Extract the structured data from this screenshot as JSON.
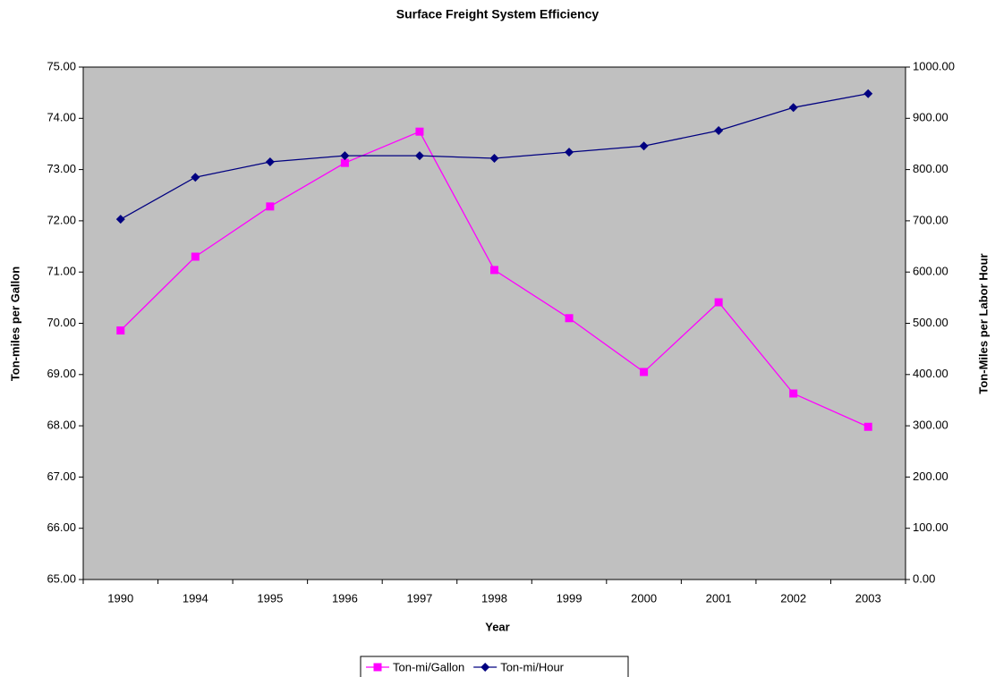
{
  "chart_data": {
    "type": "line",
    "title": "Surface Freight System Efficiency",
    "x_label": "Year",
    "y_label": "Ton-miles per Gallon",
    "y2_label": "Ton-Miles per Labor Hour",
    "categories": [
      "1990",
      "1994",
      "1995",
      "1996",
      "1997",
      "1998",
      "1999",
      "2000",
      "2001",
      "2002",
      "2003"
    ],
    "series": [
      {
        "name": "Ton-mi/Gallon",
        "color": "#ff00ff",
        "marker": "square",
        "axis": "y",
        "values": [
          69.86,
          71.3,
          72.28,
          73.13,
          73.74,
          71.04,
          70.1,
          69.05,
          70.41,
          68.63,
          67.98
        ]
      },
      {
        "name": "Ton-mi/Hour",
        "color": "#000080",
        "marker": "diamond",
        "axis": "y2",
        "values": [
          703,
          785,
          815,
          827,
          827,
          822,
          834,
          846,
          876,
          921,
          948
        ]
      }
    ],
    "ylim": [
      65,
      75
    ],
    "yticks": [
      {
        "value": 65,
        "label": "65.00"
      },
      {
        "value": 66,
        "label": "66.00"
      },
      {
        "value": 67,
        "label": "67.00"
      },
      {
        "value": 68,
        "label": "68.00"
      },
      {
        "value": 69,
        "label": "69.00"
      },
      {
        "value": 70,
        "label": "70.00"
      },
      {
        "value": 71,
        "label": "71.00"
      },
      {
        "value": 72,
        "label": "72.00"
      },
      {
        "value": 73,
        "label": "73.00"
      },
      {
        "value": 74,
        "label": "74.00"
      },
      {
        "value": 75,
        "label": "75.00"
      }
    ],
    "y2lim": [
      0,
      1000
    ],
    "y2ticks": [
      {
        "value": 0,
        "label": "0.00"
      },
      {
        "value": 100,
        "label": "100.00"
      },
      {
        "value": 200,
        "label": "200.00"
      },
      {
        "value": 300,
        "label": "300.00"
      },
      {
        "value": 400,
        "label": "400.00"
      },
      {
        "value": 500,
        "label": "500.00"
      },
      {
        "value": 600,
        "label": "600.00"
      },
      {
        "value": 700,
        "label": "700.00"
      },
      {
        "value": 800,
        "label": "800.00"
      },
      {
        "value": 900,
        "label": "900.00"
      },
      {
        "value": 1000,
        "label": "1000.00"
      }
    ],
    "grid": false,
    "legend": "bottom",
    "plot_background": "#c0c0c0"
  }
}
